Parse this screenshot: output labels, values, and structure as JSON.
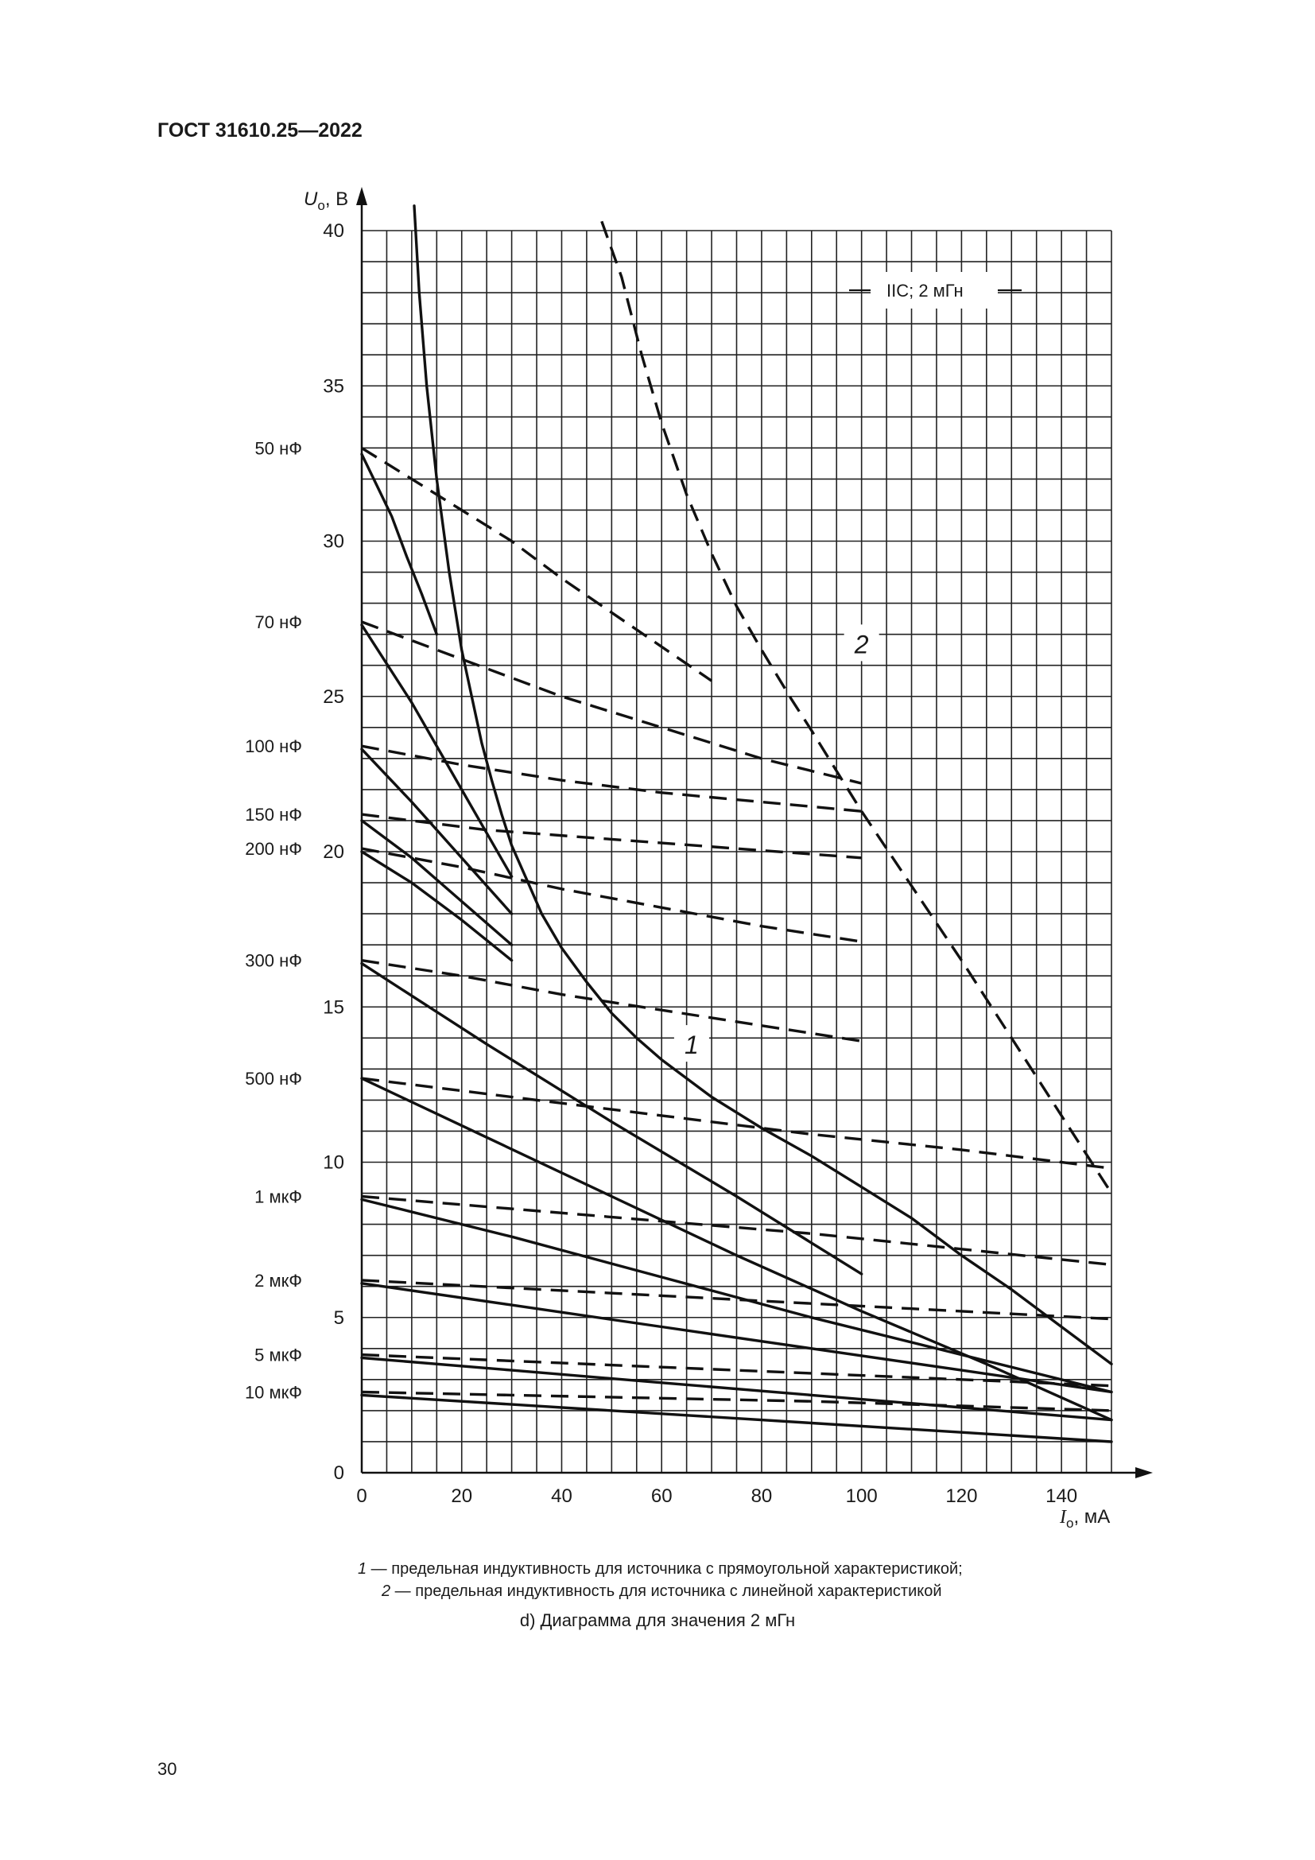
{
  "header": {
    "doc_id": "ГОСТ 31610.25—2022"
  },
  "chart_data": {
    "type": "line",
    "title": "",
    "annotation_box": "IIC; 2 мГн",
    "xlabel_symbol": "I",
    "xlabel_subscript": "o",
    "xlabel_unit": ", мА",
    "ylabel_symbol": "U",
    "ylabel_subscript": "o",
    "ylabel_unit": ", В",
    "xlim": [
      0,
      150
    ],
    "ylim": [
      0,
      40
    ],
    "x_ticks": [
      0,
      20,
      40,
      60,
      80,
      100,
      120,
      140
    ],
    "y_ticks": [
      0,
      5,
      10,
      15,
      20,
      25,
      30,
      35,
      40
    ],
    "grid": true,
    "capacitance_labels": [
      {
        "label": "50 нФ",
        "y": 33.0
      },
      {
        "label": "70 нФ",
        "y": 27.4
      },
      {
        "label": "100 нФ",
        "y": 23.4
      },
      {
        "label": "150 нФ",
        "y": 21.2
      },
      {
        "label": "200 нФ",
        "y": 20.1
      },
      {
        "label": "300 нФ",
        "y": 16.5
      },
      {
        "label": "500 нФ",
        "y": 12.7
      },
      {
        "label": "1 мкФ",
        "y": 8.9
      },
      {
        "label": "2 мкФ",
        "y": 6.2
      },
      {
        "label": "5 мкФ",
        "y": 3.8
      },
      {
        "label": "10 мкФ",
        "y": 2.6
      }
    ],
    "curve_labels": [
      {
        "label": "1",
        "x": 66,
        "y": 13.8
      },
      {
        "label": "2",
        "x": 100,
        "y": 26.7
      }
    ],
    "series": [
      {
        "name": "1",
        "style": "solid",
        "x": [
          10.5,
          11.5,
          13,
          15,
          17.5,
          20,
          22,
          24,
          26,
          28,
          30,
          33,
          36,
          40,
          45,
          50,
          55,
          60,
          70,
          80,
          90,
          100,
          110,
          120,
          130,
          140,
          150
        ],
        "y": [
          40.8,
          38,
          35,
          32,
          29,
          26.5,
          25,
          23.5,
          22.3,
          21.2,
          20.2,
          19.1,
          18,
          16.9,
          15.8,
          14.8,
          14,
          13.3,
          12.1,
          11.1,
          10.2,
          9.2,
          8.2,
          7,
          5.9,
          4.7,
          3.5
        ]
      },
      {
        "name": "2",
        "style": "dashed",
        "x": [
          48,
          52,
          56,
          60,
          65,
          70,
          75,
          80,
          86,
          90,
          95,
          100,
          110,
          120,
          130,
          140,
          150
        ],
        "y": [
          40.3,
          38.5,
          36,
          33.8,
          31.5,
          29.6,
          27.9,
          26.5,
          24.9,
          23.9,
          22.6,
          21.3,
          18.9,
          16.5,
          14,
          11.5,
          9
        ]
      },
      {
        "name": "",
        "style": "solid",
        "x": [
          0,
          3,
          6,
          9,
          12,
          15
        ],
        "y": [
          32.8,
          31.8,
          30.8,
          29.5,
          28.3,
          27
        ]
      },
      {
        "name": "",
        "style": "dashed",
        "x": [
          0,
          10,
          20,
          30,
          40,
          50,
          60,
          70
        ],
        "y": [
          33.0,
          32.0,
          31.0,
          30.0,
          28.8,
          27.7,
          26.6,
          25.5
        ]
      },
      {
        "name": "",
        "style": "solid",
        "x": [
          0,
          10,
          20,
          30
        ],
        "y": [
          27.3,
          24.8,
          22.0,
          19.2
        ]
      },
      {
        "name": "",
        "style": "dashed",
        "x": [
          0,
          20,
          40,
          60,
          80,
          100
        ],
        "y": [
          27.4,
          26.2,
          25.0,
          24.0,
          23.0,
          22.2
        ]
      },
      {
        "name": "",
        "style": "solid",
        "x": [
          0,
          10,
          20,
          30
        ],
        "y": [
          23.3,
          21.6,
          19.8,
          18.0
        ]
      },
      {
        "name": "",
        "style": "dashed",
        "x": [
          0,
          20,
          40,
          60,
          80,
          100
        ],
        "y": [
          23.4,
          22.8,
          22.3,
          21.9,
          21.6,
          21.3
        ]
      },
      {
        "name": "",
        "style": "solid",
        "x": [
          0,
          10,
          20,
          30
        ],
        "y": [
          21.0,
          19.8,
          18.4,
          17.0
        ]
      },
      {
        "name": "",
        "style": "dashed",
        "x": [
          0,
          25,
          50,
          75,
          100
        ],
        "y": [
          21.2,
          20.7,
          20.4,
          20.1,
          19.8
        ]
      },
      {
        "name": "",
        "style": "solid",
        "x": [
          0,
          10,
          20,
          30
        ],
        "y": [
          20.0,
          19.0,
          17.8,
          16.5
        ]
      },
      {
        "name": "",
        "style": "dashed",
        "x": [
          0,
          20,
          40,
          60,
          80,
          100
        ],
        "y": [
          20.1,
          19.5,
          18.8,
          18.2,
          17.6,
          17.1
        ]
      },
      {
        "name": "",
        "style": "solid",
        "x": [
          0,
          25,
          50,
          75,
          100
        ],
        "y": [
          16.4,
          13.8,
          11.3,
          8.9,
          6.4
        ]
      },
      {
        "name": "",
        "style": "dashed",
        "x": [
          0,
          20,
          40,
          60,
          80,
          100
        ],
        "y": [
          16.5,
          16.0,
          15.4,
          14.9,
          14.4,
          13.9
        ]
      },
      {
        "name": "",
        "style": "solid",
        "x": [
          0,
          25,
          50,
          75,
          100,
          125,
          150
        ],
        "y": [
          12.7,
          10.8,
          8.9,
          7.0,
          5.2,
          3.5,
          1.7
        ]
      },
      {
        "name": "",
        "style": "dashed",
        "x": [
          0,
          30,
          60,
          90,
          120,
          150
        ],
        "y": [
          12.7,
          12.1,
          11.5,
          10.9,
          10.4,
          9.8
        ]
      },
      {
        "name": "",
        "style": "solid",
        "x": [
          0,
          30,
          60,
          90,
          120,
          150
        ],
        "y": [
          8.8,
          7.6,
          6.3,
          5.0,
          3.8,
          2.6
        ]
      },
      {
        "name": "",
        "style": "dashed",
        "x": [
          0,
          30,
          60,
          90,
          120,
          150
        ],
        "y": [
          8.9,
          8.5,
          8.1,
          7.7,
          7.2,
          6.7
        ]
      },
      {
        "name": "",
        "style": "solid",
        "x": [
          0,
          30,
          60,
          90,
          120,
          150
        ],
        "y": [
          6.1,
          5.4,
          4.7,
          4.0,
          3.3,
          2.6
        ]
      },
      {
        "name": "",
        "style": "dashed",
        "x": [
          0,
          30,
          60,
          90,
          120,
          150
        ],
        "y": [
          6.2,
          5.95,
          5.7,
          5.45,
          5.2,
          4.95
        ]
      },
      {
        "name": "",
        "style": "solid",
        "x": [
          0,
          30,
          60,
          90,
          120,
          150
        ],
        "y": [
          3.7,
          3.3,
          2.9,
          2.5,
          2.1,
          1.7
        ]
      },
      {
        "name": "",
        "style": "dashed",
        "x": [
          0,
          30,
          60,
          90,
          120,
          150
        ],
        "y": [
          3.8,
          3.6,
          3.4,
          3.2,
          3.0,
          2.8
        ]
      },
      {
        "name": "",
        "style": "solid",
        "x": [
          0,
          30,
          60,
          90,
          120,
          150
        ],
        "y": [
          2.5,
          2.2,
          1.9,
          1.6,
          1.3,
          1.0
        ]
      },
      {
        "name": "",
        "style": "dashed",
        "x": [
          0,
          30,
          60,
          90,
          120,
          150
        ],
        "y": [
          2.6,
          2.5,
          2.4,
          2.3,
          2.15,
          2.0
        ]
      }
    ]
  },
  "legend": {
    "item1_key": "1",
    "item1_text": " — предельная индуктивность для источника с прямоугольной характеристикой;",
    "item2_key": "2",
    "item2_text": " — предельная индуктивность для источника с линейной характеристикой"
  },
  "caption": "d) Диаграмма для значения 2 мГн",
  "page_number": "30"
}
